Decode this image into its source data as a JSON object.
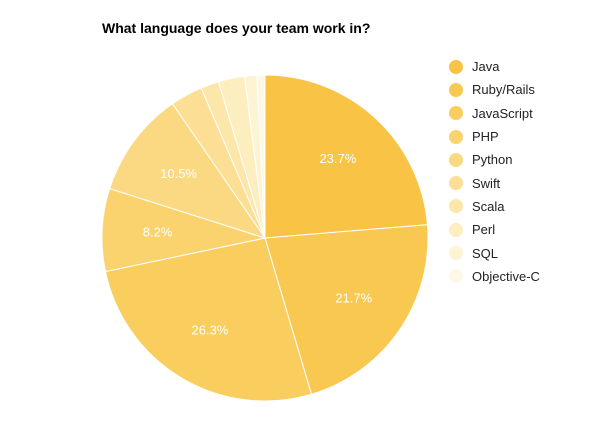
{
  "chart_data": {
    "type": "pie",
    "title": "What language does your team work in?",
    "categories": [
      "Java",
      "Ruby/Rails",
      "JavaScript",
      "PHP",
      "Python",
      "Swift",
      "Scala",
      "Perl",
      "SQL",
      "Objective-C"
    ],
    "values": [
      23.7,
      21.7,
      26.3,
      8.2,
      10.5,
      3.2,
      1.8,
      2.6,
      1.2,
      0.8
    ],
    "data_labels": [
      "23.7%",
      "21.7%",
      "26.3%",
      "8.2%",
      "10.5%",
      "",
      "",
      "",
      "",
      ""
    ],
    "colors": [
      "#f9c445",
      "#f9c851",
      "#facd5f",
      "#fad36f",
      "#fbd982",
      "#fcdf94",
      "#fce6a9",
      "#fdeebf",
      "#fef3d3",
      "#fef8e7"
    ],
    "legend_position": "right",
    "start_angle": "12 o'clock",
    "direction": "clockwise"
  }
}
